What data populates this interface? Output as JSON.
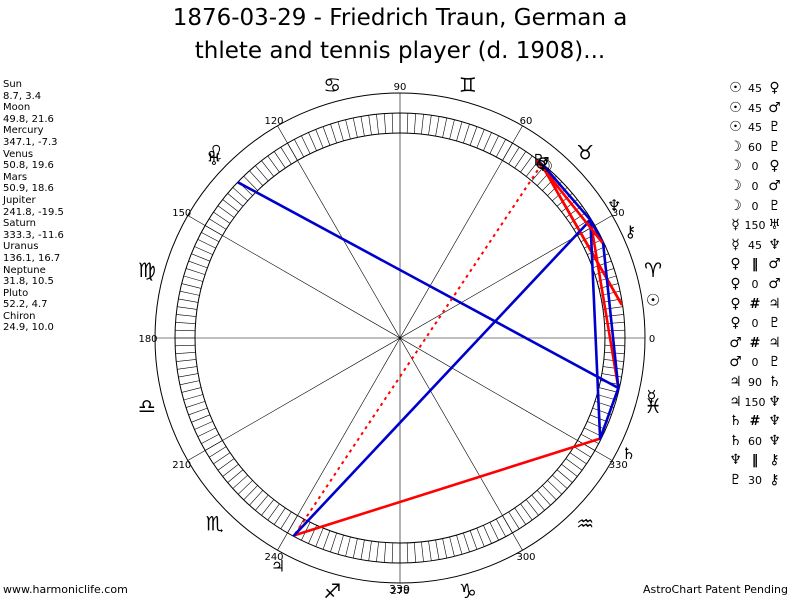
{
  "title": {
    "line1": "1876-03-29 - Friedrich Traun, German a",
    "line2": "thlete and tennis player (d. 1908)..."
  },
  "positions": [
    {
      "name": "Sun",
      "coords": "8.7, 3.4"
    },
    {
      "name": "Moon",
      "coords": "49.8, 21.6"
    },
    {
      "name": "Mercury",
      "coords": "347.1, -7.3"
    },
    {
      "name": "Venus",
      "coords": "50.8, 19.6"
    },
    {
      "name": "Mars",
      "coords": "50.9, 18.6"
    },
    {
      "name": "Jupiter",
      "coords": "241.8, -19.5"
    },
    {
      "name": "Saturn",
      "coords": "333.3, -11.6"
    },
    {
      "name": "Uranus",
      "coords": "136.1, 16.7"
    },
    {
      "name": "Neptune",
      "coords": "31.8, 10.5"
    },
    {
      "name": "Pluto",
      "coords": "52.2, 4.7"
    },
    {
      "name": "Chiron",
      "coords": "24.9, 10.0"
    }
  ],
  "glyphs": {
    "Sun": "☉",
    "Moon": "☽",
    "Mercury": "☿",
    "Venus": "♀",
    "Mars": "♂",
    "Jupiter": "♃",
    "Saturn": "♄",
    "Uranus": "♅",
    "Neptune": "♆",
    "Pluto": "♇",
    "Chiron": "⚷"
  },
  "aspects": [
    {
      "p1": "Sun",
      "value": "45",
      "p2": "Venus"
    },
    {
      "p1": "Sun",
      "value": "45",
      "p2": "Mars"
    },
    {
      "p1": "Sun",
      "value": "45",
      "p2": "Pluto"
    },
    {
      "p1": "Moon",
      "value": "60",
      "p2": "Pluto"
    },
    {
      "p1": "Moon",
      "value": "0",
      "p2": "Venus"
    },
    {
      "p1": "Moon",
      "value": "0",
      "p2": "Mars"
    },
    {
      "p1": "Moon",
      "value": "0",
      "p2": "Pluto"
    },
    {
      "p1": "Mercury",
      "value": "150",
      "p2": "Uranus"
    },
    {
      "p1": "Mercury",
      "value": "45",
      "p2": "Neptune"
    },
    {
      "p1": "Venus",
      "value": "‖",
      "p2": "Mars"
    },
    {
      "p1": "Venus",
      "value": "0",
      "p2": "Mars"
    },
    {
      "p1": "Venus",
      "value": "#",
      "p2": "Jupiter"
    },
    {
      "p1": "Venus",
      "value": "0",
      "p2": "Pluto"
    },
    {
      "p1": "Mars",
      "value": "#",
      "p2": "Jupiter"
    },
    {
      "p1": "Mars",
      "value": "0",
      "p2": "Pluto"
    },
    {
      "p1": "Jupiter",
      "value": "90",
      "p2": "Saturn"
    },
    {
      "p1": "Jupiter",
      "value": "150",
      "p2": "Neptune"
    },
    {
      "p1": "Saturn",
      "value": "#",
      "p2": "Neptune"
    },
    {
      "p1": "Saturn",
      "value": "60",
      "p2": "Neptune"
    },
    {
      "p1": "Neptune",
      "value": "‖",
      "p2": "Chiron"
    },
    {
      "p1": "Pluto",
      "value": "30",
      "p2": "Chiron"
    }
  ],
  "wheel": {
    "degree_labels": [
      "0",
      "30",
      "60",
      "90",
      "120",
      "150",
      "180",
      "210",
      "240",
      "270",
      "300",
      "330"
    ],
    "signs": [
      "♈",
      "♉",
      "♊",
      "♋",
      "♌",
      "♍",
      "♎",
      "♏",
      "♐",
      "♑",
      "♒",
      "♓"
    ],
    "sign_color": "#000000",
    "planets": [
      {
        "name": "Sun",
        "lon": 8.7
      },
      {
        "name": "Moon",
        "lon": 49.8
      },
      {
        "name": "Mercury",
        "lon": 347.1
      },
      {
        "name": "Venus",
        "lon": 50.8
      },
      {
        "name": "Mars",
        "lon": 50.9
      },
      {
        "name": "Jupiter",
        "lon": 241.8
      },
      {
        "name": "Saturn",
        "lon": 333.3
      },
      {
        "name": "Uranus",
        "lon": 136.1
      },
      {
        "name": "Neptune",
        "lon": 31.8
      },
      {
        "name": "Pluto",
        "lon": 52.2
      },
      {
        "name": "Chiron",
        "lon": 24.9
      }
    ],
    "lines": [
      {
        "from": "Sun",
        "to": "Mars",
        "color": "#ff0000"
      },
      {
        "from": "Sun",
        "to": "Venus",
        "color": "#ff0000"
      },
      {
        "from": "Moon",
        "to": "Pluto",
        "color": "#0000cc"
      },
      {
        "from": "Mercury",
        "to": "Uranus",
        "color": "#0000cc"
      },
      {
        "from": "Mercury",
        "to": "Neptune",
        "color": "#ff0000"
      },
      {
        "from": "Venus",
        "to": "Jupiter",
        "color": "#ff0000",
        "dotted": true
      },
      {
        "from": "Jupiter",
        "to": "Saturn",
        "color": "#ff0000"
      },
      {
        "from": "Jupiter",
        "to": "Neptune",
        "color": "#0000cc"
      },
      {
        "from": "Saturn",
        "to": "Neptune",
        "color": "#0000cc"
      },
      {
        "from": "Saturn",
        "to": "Mercury",
        "color": "#0000cc"
      },
      {
        "from": "Neptune",
        "to": "Chiron",
        "color": "#0000cc"
      },
      {
        "from": "Pluto",
        "to": "Chiron",
        "color": "#ff0000"
      },
      {
        "from": "Chiron",
        "to": "Mercury",
        "color": "#0000cc"
      },
      {
        "from": "Moon",
        "to": "Neptune",
        "color": "#0000cc"
      }
    ]
  },
  "footer": {
    "left": "www.harmoniclife.com",
    "center": "339",
    "right": "AstroChart Patent Pending"
  }
}
